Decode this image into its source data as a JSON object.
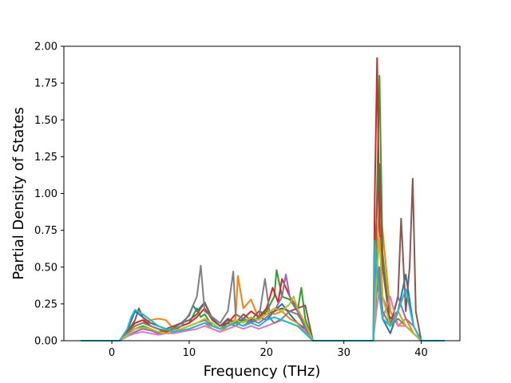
{
  "chart_data": {
    "type": "line",
    "title": "",
    "xlabel": "Frequency (THz)",
    "ylabel": "Partial Density of States",
    "xlim": [
      -6.2,
      45
    ],
    "ylim": [
      0,
      2.0
    ],
    "xticks": [
      0,
      10,
      20,
      30,
      40
    ],
    "yticks": [
      0.0,
      0.25,
      0.5,
      0.75,
      1.0,
      1.25,
      1.5,
      1.75,
      2.0
    ],
    "ytick_labels": [
      "0.00",
      "0.25",
      "0.50",
      "0.75",
      "1.00",
      "1.25",
      "1.50",
      "1.75",
      "2.00"
    ],
    "grid": false,
    "legend": "none",
    "series": [
      {
        "color": "#1f77b4",
        "x": [
          -4,
          1,
          2,
          3,
          4,
          5,
          6,
          7,
          8,
          9,
          10,
          10.5,
          11,
          12,
          13,
          14,
          15,
          16,
          17,
          18,
          19,
          20,
          21,
          22,
          23,
          24,
          25,
          26,
          33.8,
          34.2,
          34.6,
          35,
          36,
          37,
          38,
          39,
          40,
          43
        ],
        "y": [
          0,
          0,
          0.07,
          0.2,
          0.16,
          0.1,
          0.08,
          0.06,
          0.09,
          0.12,
          0.17,
          0.24,
          0.2,
          0.26,
          0.15,
          0.1,
          0.14,
          0.12,
          0.15,
          0.13,
          0.16,
          0.14,
          0.2,
          0.25,
          0.18,
          0.12,
          0.08,
          0,
          0,
          0.45,
          0.3,
          0.15,
          0.05,
          0.2,
          0.45,
          0.1,
          0,
          0
        ]
      },
      {
        "color": "#ff7f0e",
        "x": [
          -4,
          1,
          2,
          3,
          4,
          5,
          6,
          7,
          8,
          9,
          10,
          11,
          12,
          13,
          14,
          15,
          16,
          16.3,
          17,
          18,
          19,
          20,
          21,
          22,
          23,
          24,
          25,
          26,
          33.8,
          34.2,
          34.6,
          35,
          36,
          37,
          38,
          39,
          40,
          43
        ],
        "y": [
          0,
          0,
          0.05,
          0.1,
          0.12,
          0.14,
          0.15,
          0.14,
          0.08,
          0.06,
          0.08,
          0.1,
          0.12,
          0.08,
          0.06,
          0.1,
          0.15,
          0.44,
          0.22,
          0.28,
          0.15,
          0.2,
          0.18,
          0.2,
          0.15,
          0.12,
          0.06,
          0,
          0,
          0.5,
          0.96,
          0.75,
          0.2,
          0.1,
          0.15,
          0.05,
          0,
          0
        ]
      },
      {
        "color": "#2ca02c",
        "x": [
          -4,
          1,
          2,
          3,
          4,
          5,
          6,
          7,
          8,
          9,
          10,
          11,
          11.5,
          12,
          13,
          14,
          15,
          16,
          17,
          18,
          19,
          20,
          21,
          21.3,
          22,
          23,
          24,
          24.5,
          25,
          26,
          33.8,
          34.2,
          34.6,
          35,
          36,
          37,
          38,
          39,
          40,
          43
        ],
        "y": [
          0,
          0,
          0.04,
          0.08,
          0.1,
          0.08,
          0.06,
          0.07,
          0.08,
          0.1,
          0.12,
          0.22,
          0.16,
          0.18,
          0.1,
          0.08,
          0.12,
          0.1,
          0.14,
          0.12,
          0.16,
          0.2,
          0.3,
          0.48,
          0.3,
          0.28,
          0.2,
          0.36,
          0.15,
          0,
          0,
          0.8,
          1.8,
          0.6,
          0.1,
          0.2,
          0.1,
          0.05,
          0,
          0
        ]
      },
      {
        "color": "#d62728",
        "x": [
          -4,
          1,
          2,
          3,
          4,
          5,
          6,
          7,
          8,
          9,
          10,
          11,
          12,
          13,
          14,
          15,
          16,
          17,
          18,
          19,
          20,
          20.8,
          21.5,
          22,
          23,
          24,
          25,
          26,
          33.8,
          34,
          34.3,
          34.6,
          35,
          36,
          37,
          38,
          39,
          40,
          43
        ],
        "y": [
          0,
          0,
          0.06,
          0.12,
          0.14,
          0.1,
          0.08,
          0.06,
          0.07,
          0.1,
          0.12,
          0.16,
          0.22,
          0.14,
          0.1,
          0.12,
          0.18,
          0.15,
          0.2,
          0.16,
          0.22,
          0.36,
          0.26,
          0.42,
          0.3,
          0.22,
          0.1,
          0,
          0,
          1.0,
          1.92,
          0.8,
          0.3,
          0.15,
          0.2,
          0.1,
          0.05,
          0,
          0
        ]
      },
      {
        "color": "#9467bd",
        "x": [
          -4,
          1,
          2,
          3,
          4,
          5,
          6,
          7,
          8,
          9,
          10,
          11,
          12,
          13,
          14,
          15,
          16,
          17,
          18,
          19,
          20,
          21,
          22,
          22.5,
          23,
          24,
          25,
          26,
          33.8,
          34.2,
          34.6,
          35,
          36,
          37,
          38,
          39,
          40,
          43
        ],
        "y": [
          0,
          0,
          0.03,
          0.06,
          0.08,
          0.07,
          0.05,
          0.05,
          0.06,
          0.08,
          0.1,
          0.12,
          0.14,
          0.1,
          0.08,
          0.1,
          0.12,
          0.1,
          0.14,
          0.12,
          0.16,
          0.2,
          0.3,
          0.45,
          0.3,
          0.2,
          0.08,
          0,
          0,
          0.3,
          0.5,
          0.2,
          0.1,
          0.3,
          0.15,
          0.1,
          0,
          0
        ]
      },
      {
        "color": "#8c564b",
        "x": [
          -4,
          1,
          2,
          3,
          3.5,
          4,
          5,
          6,
          7,
          8,
          9,
          10,
          11,
          12,
          13,
          14,
          15,
          16,
          17,
          18,
          19,
          20,
          21,
          22,
          23,
          24,
          25,
          26,
          33.8,
          34.2,
          34.6,
          35,
          36,
          37,
          37.4,
          38,
          38.5,
          38.9,
          39.3,
          40,
          43
        ],
        "y": [
          0,
          0,
          0.06,
          0.14,
          0.22,
          0.16,
          0.12,
          0.1,
          0.08,
          0.1,
          0.12,
          0.14,
          0.18,
          0.26,
          0.14,
          0.1,
          0.15,
          0.12,
          0.18,
          0.14,
          0.2,
          0.18,
          0.2,
          0.22,
          0.2,
          0.22,
          0.24,
          0,
          0,
          0.8,
          1.2,
          0.5,
          0.1,
          0.3,
          0.83,
          0.2,
          0.5,
          1.1,
          0.2,
          0,
          0
        ]
      },
      {
        "color": "#e377c2",
        "x": [
          -4,
          1,
          2,
          3,
          4,
          5,
          6,
          7,
          8,
          9,
          10,
          11,
          12,
          13,
          14,
          15,
          16,
          17,
          18,
          19,
          20,
          21,
          22,
          23,
          24,
          25,
          26,
          33.8,
          34.2,
          34.6,
          35,
          36,
          37,
          38,
          39,
          40,
          43
        ],
        "y": [
          0,
          0,
          0.03,
          0.05,
          0.06,
          0.05,
          0.04,
          0.05,
          0.05,
          0.06,
          0.07,
          0.08,
          0.1,
          0.08,
          0.06,
          0.08,
          0.1,
          0.08,
          0.1,
          0.08,
          0.1,
          0.12,
          0.14,
          0.12,
          0.1,
          0.06,
          0,
          0,
          0.2,
          0.35,
          0.15,
          0.3,
          0.1,
          0.1,
          0.05,
          0,
          0
        ]
      },
      {
        "color": "#7f7f7f",
        "x": [
          -4,
          1,
          2,
          3,
          4,
          5,
          6,
          7,
          8,
          9,
          10,
          11,
          11.5,
          12,
          13,
          14,
          15,
          15.7,
          16,
          17,
          18,
          19,
          19.8,
          20.5,
          21,
          22,
          23,
          24,
          25,
          26,
          33.8,
          34.2,
          34.6,
          35,
          36,
          37,
          38,
          39,
          40,
          43
        ],
        "y": [
          0,
          0,
          0.05,
          0.1,
          0.12,
          0.1,
          0.08,
          0.07,
          0.08,
          0.1,
          0.18,
          0.3,
          0.51,
          0.2,
          0.16,
          0.12,
          0.2,
          0.47,
          0.18,
          0.15,
          0.12,
          0.15,
          0.42,
          0.15,
          0.12,
          0.15,
          0.2,
          0.18,
          0.1,
          0,
          0,
          0.6,
          0.4,
          0.2,
          0.1,
          0.15,
          0.1,
          0.05,
          0,
          0
        ]
      },
      {
        "color": "#bcbd22",
        "x": [
          -4,
          1,
          2,
          3,
          4,
          5,
          6,
          7,
          8,
          9,
          10,
          11,
          12,
          13,
          14,
          15,
          16,
          17,
          18,
          19,
          20,
          21,
          22,
          23,
          23.5,
          24,
          25,
          26,
          33.8,
          34.2,
          34.6,
          35,
          36,
          37,
          38,
          39,
          40,
          43
        ],
        "y": [
          0,
          0,
          0.04,
          0.08,
          0.09,
          0.08,
          0.06,
          0.05,
          0.07,
          0.08,
          0.1,
          0.12,
          0.15,
          0.12,
          0.08,
          0.1,
          0.14,
          0.12,
          0.16,
          0.14,
          0.18,
          0.22,
          0.2,
          0.25,
          0.3,
          0.22,
          0.12,
          0,
          0,
          0.4,
          0.7,
          0.3,
          0.1,
          0.2,
          0.1,
          0.05,
          0,
          0
        ]
      },
      {
        "color": "#17becf",
        "x": [
          -4,
          1,
          2,
          2.5,
          3,
          4,
          5,
          6,
          7,
          8,
          9,
          10,
          11,
          12,
          13,
          14,
          15,
          16,
          17,
          18,
          19,
          20,
          21,
          22,
          23,
          24,
          25,
          26,
          33.8,
          34,
          34.2,
          34.6,
          35,
          36,
          37,
          38,
          39,
          40,
          43
        ],
        "y": [
          0,
          0,
          0.08,
          0.16,
          0.21,
          0.18,
          0.14,
          0.1,
          0.08,
          0.06,
          0.07,
          0.08,
          0.1,
          0.12,
          0.1,
          0.08,
          0.1,
          0.12,
          0.1,
          0.12,
          0.1,
          0.14,
          0.16,
          0.14,
          0.12,
          0.1,
          0.05,
          0,
          0,
          0.68,
          0.5,
          0.3,
          0.15,
          0.1,
          0.2,
          0.35,
          0.1,
          0,
          0
        ]
      }
    ]
  }
}
